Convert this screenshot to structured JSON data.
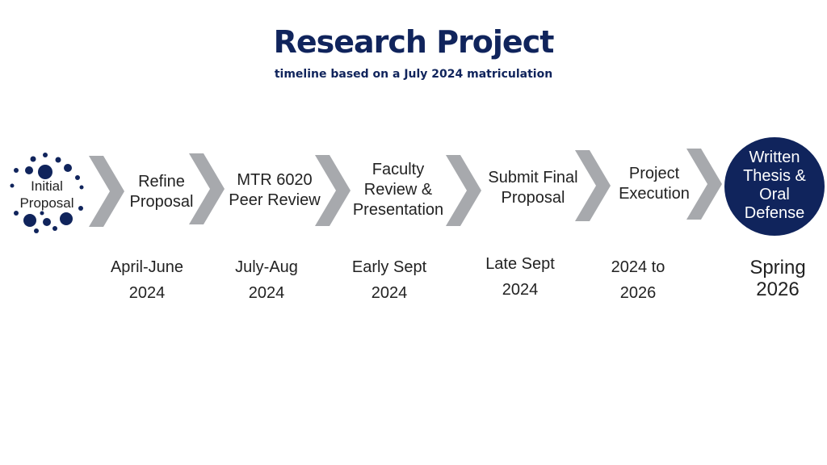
{
  "header": {
    "title": "Research Project",
    "subtitle": "timeline based on a July 2024 matriculation"
  },
  "start": {
    "label": "Initial\nProposal",
    "dot_color": "#10245c"
  },
  "steps": [
    {
      "label": "Refine\nProposal",
      "date": "April-June\n2024"
    },
    {
      "label": "MTR 6020\nPeer Review",
      "date": "July-Aug\n2024"
    },
    {
      "label": "Faculty\nReview &\nPresentation",
      "date": "Early Sept\n2024"
    },
    {
      "label": "Submit Final\nProposal",
      "date": "Late Sept\n2024"
    },
    {
      "label": "Project\nExecution",
      "date": "2024 to\n2026"
    }
  ],
  "final": {
    "label": "Written\nThesis &\nOral\nDefense",
    "date": "Spring\n2026",
    "color": "#10245c"
  },
  "colors": {
    "chevron": "#a7a9ad",
    "primary": "#10245c"
  }
}
